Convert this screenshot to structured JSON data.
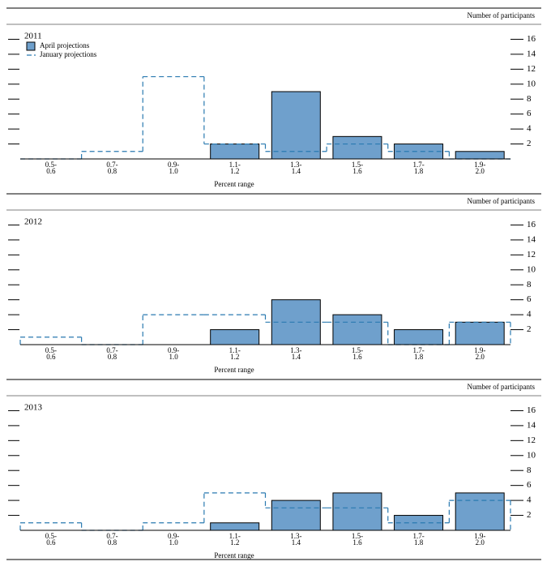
{
  "chart_data": [
    {
      "type": "histogram",
      "title": "2011",
      "ylabel": "Number of participants",
      "xlabel": "Percent range",
      "categories": [
        "0.5-\n0.6",
        "0.7-\n0.8",
        "0.9-\n1.0",
        "1.1-\n1.2",
        "1.3-\n1.4",
        "1.5-\n1.6",
        "1.7-\n1.8",
        "1.9-\n2.0"
      ],
      "series": [
        {
          "name": "April projections",
          "style": "bar",
          "color": "#6fa0cc",
          "values": [
            0,
            0,
            0,
            2,
            9,
            3,
            2,
            1
          ]
        },
        {
          "name": "January projections",
          "style": "dashed",
          "color": "#2a7ab0",
          "values": [
            0,
            1,
            11,
            2,
            1,
            2,
            1,
            0
          ]
        }
      ],
      "ylim": [
        0,
        18
      ],
      "yticks": [
        2,
        4,
        6,
        8,
        10,
        12,
        14,
        16
      ],
      "legend": true
    },
    {
      "type": "histogram",
      "title": "2012",
      "ylabel": "Number of participants",
      "xlabel": "Percent range",
      "categories": [
        "0.5-\n0.6",
        "0.7-\n0.8",
        "0.9-\n1.0",
        "1.1-\n1.2",
        "1.3-\n1.4",
        "1.5-\n1.6",
        "1.7-\n1.8",
        "1.9-\n2.0"
      ],
      "series": [
        {
          "style": "bar",
          "color": "#6fa0cc",
          "values": [
            0,
            0,
            0,
            2,
            6,
            4,
            2,
            3
          ]
        },
        {
          "style": "dashed",
          "color": "#2a7ab0",
          "values": [
            1,
            0,
            4,
            4,
            3,
            3,
            0,
            3
          ]
        }
      ],
      "ylim": [
        0,
        18
      ],
      "yticks": [
        2,
        4,
        6,
        8,
        10,
        12,
        14,
        16
      ],
      "legend": false
    },
    {
      "type": "histogram",
      "title": "2013",
      "ylabel": "Number of participants",
      "xlabel": "Percent range",
      "categories": [
        "0.5-\n0.6",
        "0.7-\n0.8",
        "0.9-\n1.0",
        "1.1-\n1.2",
        "1.3-\n1.4",
        "1.5-\n1.6",
        "1.7-\n1.8",
        "1.9-\n2.0"
      ],
      "series": [
        {
          "style": "bar",
          "color": "#6fa0cc",
          "values": [
            0,
            0,
            0,
            1,
            4,
            5,
            2,
            5
          ]
        },
        {
          "style": "dashed",
          "color": "#2a7ab0",
          "values": [
            1,
            0,
            1,
            5,
            3,
            3,
            1,
            4
          ]
        }
      ],
      "ylim": [
        0,
        18
      ],
      "yticks": [
        2,
        4,
        6,
        8,
        10,
        12,
        14,
        16
      ],
      "legend": false
    }
  ]
}
